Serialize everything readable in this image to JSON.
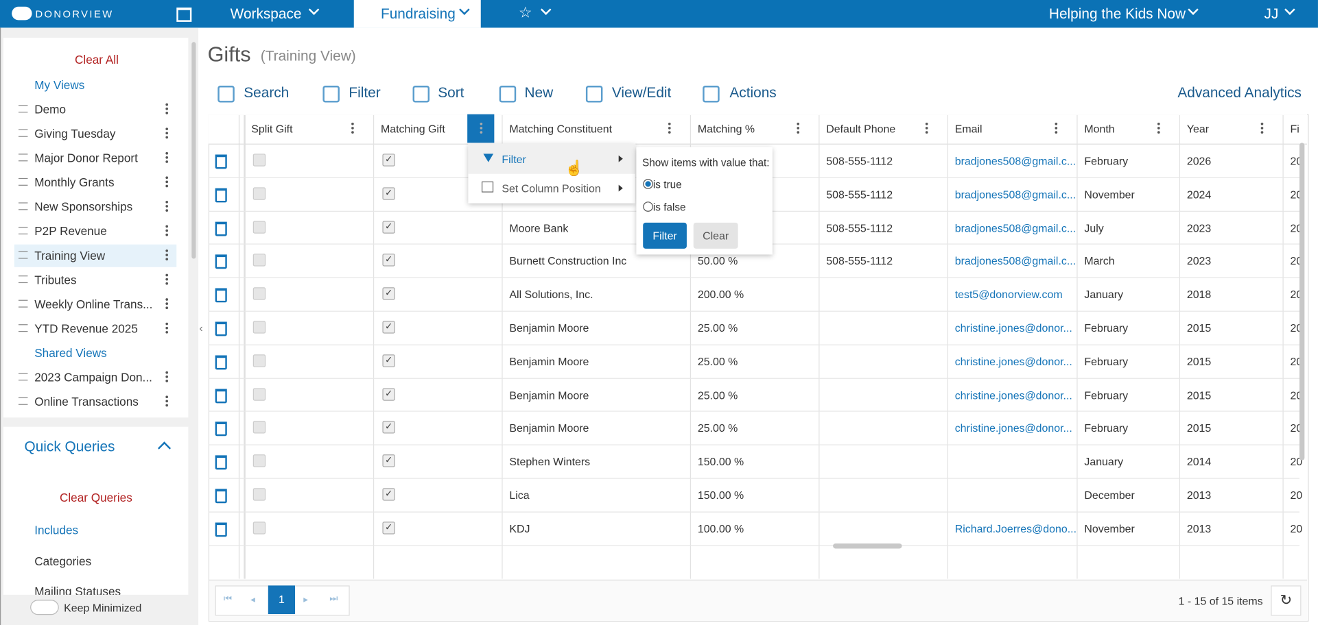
{
  "nav": {
    "brand": "DONORVIEW",
    "workspace": "Workspace",
    "fundraising": "Fundraising",
    "org": "Helping the Kids Now",
    "user": "JJ"
  },
  "sidebar": {
    "clear_all": "Clear All",
    "my_views_label": "My Views",
    "my_views": [
      "Demo",
      "Giving Tuesday",
      "Major Donor Report",
      "Monthly Grants",
      "New Sponsorships",
      "P2P Revenue",
      "Training View",
      "Tributes",
      "Weekly Online Trans...",
      "YTD Revenue 2025"
    ],
    "shared_views_label": "Shared Views",
    "shared_views": [
      "2023 Campaign Don...",
      "Online Transactions"
    ],
    "quick_queries": "Quick Queries",
    "clear_queries": "Clear Queries",
    "includes": "Includes",
    "categories": "Categories",
    "mailing": "Mailing Statuses",
    "keep_minimized": "Keep Minimized"
  },
  "header": {
    "title": "Gifts",
    "subtitle": "(Training View)"
  },
  "toolbar": [
    "Search",
    "Filter",
    "Sort",
    "New",
    "View/Edit",
    "Actions"
  ],
  "analytics": "Advanced Analytics",
  "table": {
    "columns": [
      "Split Gift",
      "Matching Gift",
      "Matching Constituent",
      "Matching %",
      "Default Phone",
      "Email",
      "Month",
      "Year",
      "Fi"
    ],
    "rows": [
      {
        "phone": "508-555-1112",
        "email": "bradjones508@gmail.c...",
        "month": "February",
        "year": "2026",
        "fi": "20"
      },
      {
        "phone": "508-555-1112",
        "email": "bradjones508@gmail.c...",
        "month": "November",
        "year": "2024",
        "fi": "20"
      },
      {
        "constituent": "Moore Bank",
        "phone": "508-555-1112",
        "email": "bradjones508@gmail.c...",
        "month": "July",
        "year": "2023",
        "fi": "20"
      },
      {
        "constituent": "Burnett Construction Inc",
        "pct": "50.00 %",
        "phone": "508-555-1112",
        "email": "bradjones508@gmail.c...",
        "month": "March",
        "year": "2023",
        "fi": "20"
      },
      {
        "constituent": "All Solutions, Inc.",
        "pct": "200.00 %",
        "email": "test5@donorview.com",
        "month": "January",
        "year": "2018",
        "fi": "20"
      },
      {
        "constituent": "Benjamin Moore",
        "pct": "25.00 %",
        "email": "christine.jones@donor...",
        "month": "February",
        "year": "2015",
        "fi": "20"
      },
      {
        "constituent": "Benjamin Moore",
        "pct": "25.00 %",
        "email": "christine.jones@donor...",
        "month": "February",
        "year": "2015",
        "fi": "20"
      },
      {
        "constituent": "Benjamin Moore",
        "pct": "25.00 %",
        "email": "christine.jones@donor...",
        "month": "February",
        "year": "2015",
        "fi": "20"
      },
      {
        "constituent": "Benjamin Moore",
        "pct": "25.00 %",
        "email": "christine.jones@donor...",
        "month": "February",
        "year": "2015",
        "fi": "20"
      },
      {
        "constituent": "Stephen Winters",
        "pct": "150.00 %",
        "month": "January",
        "year": "2014",
        "fi": "20"
      },
      {
        "constituent": "Lica",
        "pct": "150.00 %",
        "month": "December",
        "year": "2013",
        "fi": "20"
      },
      {
        "constituent": "KDJ",
        "pct": "100.00 %",
        "email": "Richard.Joerres@dono...",
        "month": "November",
        "year": "2013",
        "fi": "20"
      }
    ]
  },
  "menu": {
    "items": [
      "Filter",
      "Set Column Position"
    ],
    "prompt": "Show items with value that:",
    "options": [
      "is true",
      "is false"
    ],
    "filter_btn": "Filter",
    "clear_btn": "Clear"
  },
  "pager": {
    "page": "1",
    "summary": "1 - 15 of 15 items"
  }
}
